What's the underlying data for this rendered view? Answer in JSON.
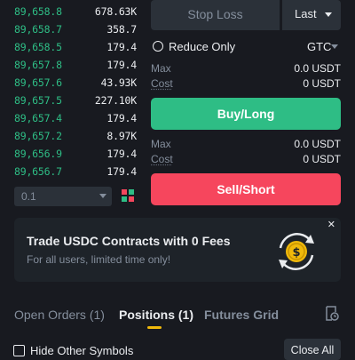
{
  "orderbook": {
    "rows": [
      {
        "price": "89,658.8",
        "amount": "678.63K"
      },
      {
        "price": "89,658.7",
        "amount": "358.7"
      },
      {
        "price": "89,658.5",
        "amount": "179.4"
      },
      {
        "price": "89,657.8",
        "amount": "179.4"
      },
      {
        "price": "89,657.6",
        "amount": "43.93K"
      },
      {
        "price": "89,657.5",
        "amount": "227.10K"
      },
      {
        "price": "89,657.4",
        "amount": "179.4"
      },
      {
        "price": "89,657.2",
        "amount": "8.97K"
      },
      {
        "price": "89,656.9",
        "amount": "179.4"
      },
      {
        "price": "89,656.7",
        "amount": "179.4"
      }
    ],
    "depth_value": "0.1"
  },
  "order_form": {
    "order_type": "Stop Loss",
    "trigger_price_type": "Last",
    "reduce_only_label": "Reduce Only",
    "time_in_force": "GTC",
    "buy": {
      "max_label": "Max",
      "max_value": "0.0 USDT",
      "cost_label": "Cost",
      "cost_value": "0 USDT",
      "button_label": "Buy/Long"
    },
    "sell": {
      "max_label": "Max",
      "max_value": "0.0 USDT",
      "cost_label": "Cost",
      "cost_value": "0 USDT",
      "button_label": "Sell/Short"
    }
  },
  "promo": {
    "title": "Trade USDC Contracts with 0 Fees",
    "subtitle": "For all users, limited time only!",
    "close_glyph": "✕",
    "coin_symbol": "$"
  },
  "tabs": [
    {
      "label": "Open Orders (1)",
      "active": false
    },
    {
      "label": "Positions (1)",
      "active": true
    },
    {
      "label": "Futures Grid",
      "active": false
    }
  ],
  "bottom": {
    "hide_other_symbols_label": "Hide Other Symbols",
    "close_all_label": "Close All"
  },
  "colors": {
    "background": "#181a20",
    "buy_green": "#2ebd85",
    "sell_red": "#f6465d",
    "accent_yellow": "#f0b90b",
    "muted_text": "#848e9c"
  }
}
